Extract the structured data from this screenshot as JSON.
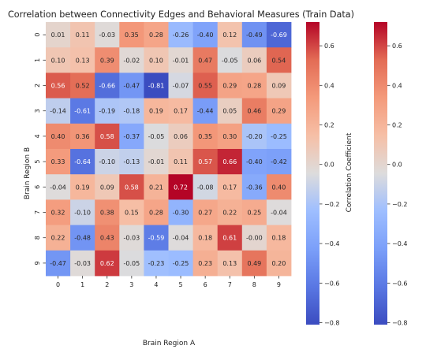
{
  "chart_data": {
    "type": "heatmap",
    "title": "Correlation between Connectivity Edges and Behavioral Measures (Train Data)",
    "xlabel": "Brain Region A",
    "ylabel": "Brain Region B",
    "x_categories": [
      "0",
      "1",
      "2",
      "3",
      "4",
      "5",
      "6",
      "7",
      "8",
      "9"
    ],
    "y_categories": [
      "0",
      "1",
      "2",
      "3",
      "4",
      "5",
      "6",
      "7",
      "8",
      "9"
    ],
    "values": [
      [
        0.01,
        0.11,
        -0.03,
        0.35,
        0.28,
        -0.26,
        -0.4,
        0.12,
        -0.49,
        -0.69
      ],
      [
        0.1,
        0.13,
        0.39,
        -0.02,
        0.1,
        -0.01,
        0.47,
        -0.05,
        0.06,
        0.54
      ],
      [
        0.56,
        0.52,
        -0.66,
        -0.47,
        -0.81,
        -0.07,
        0.55,
        0.29,
        0.28,
        0.09
      ],
      [
        -0.14,
        -0.61,
        -0.19,
        -0.18,
        0.19,
        0.17,
        -0.44,
        0.05,
        0.46,
        0.29
      ],
      [
        0.4,
        0.36,
        0.58,
        -0.37,
        -0.05,
        0.06,
        0.35,
        0.3,
        -0.2,
        -0.25
      ],
      [
        0.33,
        -0.64,
        -0.1,
        -0.13,
        -0.01,
        0.11,
        0.57,
        0.66,
        -0.4,
        -0.42
      ],
      [
        -0.04,
        0.19,
        0.09,
        0.58,
        0.21,
        0.72,
        -0.08,
        0.17,
        -0.36,
        0.4
      ],
      [
        0.32,
        -0.1,
        0.38,
        0.15,
        0.28,
        -0.3,
        0.27,
        0.22,
        0.25,
        -0.04
      ],
      [
        0.22,
        -0.48,
        0.43,
        -0.03,
        -0.59,
        -0.04,
        0.18,
        0.61,
        -0.0,
        0.18
      ],
      [
        -0.47,
        -0.03,
        0.62,
        -0.05,
        -0.23,
        -0.25,
        0.23,
        0.13,
        0.49,
        0.2
      ]
    ],
    "annotation_format": "0.00",
    "colormap": "coolwarm",
    "vmin": -0.81,
    "vmax": 0.72,
    "colorbars": [
      {
        "label": "Correlation Coefficient",
        "ticks": [
          -0.8,
          -0.6,
          -0.4,
          -0.2,
          0.0,
          0.2,
          0.4,
          0.6
        ],
        "tick_labels": [
          "−0.8",
          "−0.6",
          "−0.4",
          "−0.2",
          "0.0",
          "0.2",
          "0.4",
          "0.6"
        ]
      },
      {
        "label": "",
        "ticks": [
          -0.8,
          -0.6,
          -0.4,
          -0.2,
          0.0,
          0.2,
          0.4,
          0.6
        ],
        "tick_labels": [
          "−0.8",
          "−0.6",
          "−0.4",
          "−0.2",
          "0.0",
          "0.2",
          "0.4",
          "0.6"
        ]
      }
    ]
  }
}
